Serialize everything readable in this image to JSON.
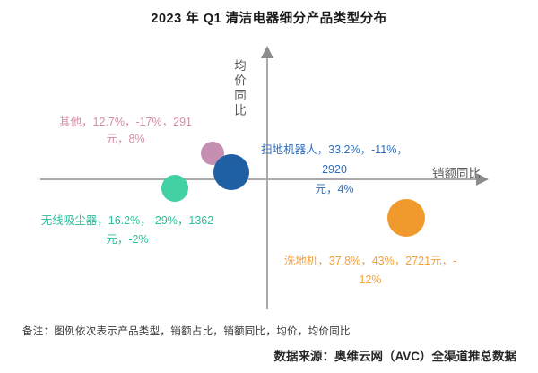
{
  "title": "2023 年 Q1 清洁电器细分产品类型分布",
  "axes": {
    "y_label": "均价同比",
    "x_label": "销额同比"
  },
  "bubbles": [
    {
      "id": "other",
      "line1": "其他，12.7%，-17%，291",
      "line2": "元，8%",
      "bubble_color": "#c48fb0",
      "text_color": "#d98ca6"
    },
    {
      "id": "robot-vacuum",
      "line1": "扫地机器人，33.2%，-11%，2920",
      "line2": "元，4%",
      "bubble_color": "#1f5fa3",
      "text_color": "#2e6fbe"
    },
    {
      "id": "cordless-vacuum",
      "line1": "无线吸尘器，16.2%，-29%，1362",
      "line2": "元，-2%",
      "bubble_color": "#42d1a5",
      "text_color": "#2bbf9b"
    },
    {
      "id": "floor-washer",
      "line1": "洗地机，37.8%，43%，2721元，-",
      "line2": "12%",
      "bubble_color": "#f0992c",
      "text_color": "#f5a03d"
    }
  ],
  "note": "备注：图例依次表示产品类型，销额占比，销额同比，均价，均价同比",
  "source": "数据来源：奥维云网（AVC）全渠道推总数据",
  "chart_data": {
    "type": "scatter",
    "subtype": "bubble",
    "title": "2023 年 Q1 清洁电器细分产品类型分布",
    "xlabel": "销额同比",
    "ylabel": "均价同比",
    "legend_meaning": "产品类型，销额占比，销额同比，均价，均价同比",
    "grid": false,
    "series": [
      {
        "name": "其他",
        "sales_share_pct": 12.7,
        "sales_yoy_pct": -17,
        "avg_price_yuan": 291,
        "price_yoy_pct": 8,
        "color": "#c48fb0"
      },
      {
        "name": "扫地机器人",
        "sales_share_pct": 33.2,
        "sales_yoy_pct": -11,
        "avg_price_yuan": 2920,
        "price_yoy_pct": 4,
        "color": "#1f5fa3"
      },
      {
        "name": "无线吸尘器",
        "sales_share_pct": 16.2,
        "sales_yoy_pct": -29,
        "avg_price_yuan": 1362,
        "price_yoy_pct": -2,
        "color": "#42d1a5"
      },
      {
        "name": "洗地机",
        "sales_share_pct": 37.8,
        "sales_yoy_pct": 43,
        "avg_price_yuan": 2721,
        "price_yoy_pct": -12,
        "color": "#f0992c"
      }
    ]
  }
}
